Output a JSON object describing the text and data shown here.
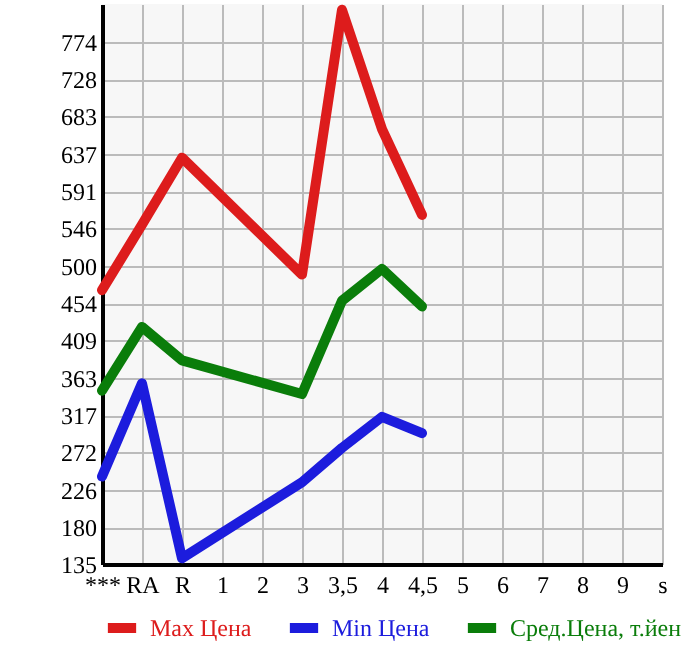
{
  "chart_data": {
    "type": "line",
    "categories": [
      "***",
      "RA",
      "R",
      "1",
      "2",
      "3",
      "3,5",
      "4",
      "4,5",
      "5",
      "6",
      "7",
      "8",
      "9",
      "s"
    ],
    "series": [
      {
        "name": "Max Цена",
        "color": "#dd1c1c",
        "values": [
          470,
          550,
          632,
          null,
          null,
          489,
          813,
          667,
          562,
          null,
          null,
          null,
          null,
          null,
          null
        ]
      },
      {
        "name": "Min Цена",
        "color": "#1c1cdd",
        "values": [
          242,
          356,
          142,
          null,
          null,
          235,
          277,
          315,
          295,
          null,
          null,
          null,
          null,
          null,
          null
        ]
      },
      {
        "name": "Сред.Цена, т.йен",
        "color": "#0a7d0a",
        "values": [
          347,
          425,
          384,
          null,
          null,
          343,
          457,
          496,
          450,
          null,
          null,
          null,
          null,
          null,
          null
        ]
      }
    ],
    "ylim": [
      135,
      820
    ],
    "yticks": [
      135,
      180,
      226,
      272,
      317,
      363,
      409,
      454,
      500,
      546,
      591,
      637,
      683,
      728,
      774
    ],
    "grid": true,
    "legend": "bottom",
    "marker": "none",
    "line_style": "solid"
  }
}
